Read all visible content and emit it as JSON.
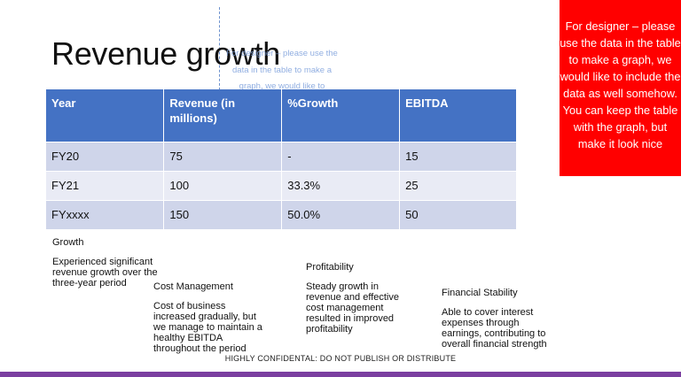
{
  "slide": {
    "title": "Revenue growth",
    "table": {
      "headers": [
        "Year",
        "Revenue (in millions)",
        "%Growth",
        "EBITDA"
      ],
      "rows": [
        [
          "FY20",
          "75",
          "-",
          "15"
        ],
        [
          "FY21",
          "100",
          "33.3%",
          "25"
        ],
        [
          "FYxxxx",
          "150",
          "50.0%",
          "50"
        ]
      ]
    },
    "designer_note": "For designer – please use the data in the table to make a graph, we would like to include the data as well somehow. You can keep the table with the graph, but make it look nice",
    "ghost_text": "For designer – please use the data in the table to make a graph, we would like to include the data as well somehow. You can keep the table with the graph, but make it look nice",
    "blocks": [
      {
        "heading": "Growth",
        "body": "Experienced significant revenue growth over the three-year period"
      },
      {
        "heading": "Cost Management",
        "body": "Cost of business increased gradually, but we manage to maintain a healthy EBITDA throughout the period"
      },
      {
        "heading": "Profitability",
        "body": "Steady growth in revenue and effective cost management resulted in improved profitability"
      },
      {
        "heading": "Financial Stability",
        "body": "Able to cover interest expenses through earnings, contributing to overall financial strength"
      }
    ],
    "footer": "HIGHLY CONFIDENTAL: DO NOT PUBLISH OR DISTRIBUTE",
    "colors": {
      "table_header": "#4472c4",
      "row_odd": "#cfd5ea",
      "row_even": "#e9ebf5",
      "note_bg": "#ff0000",
      "bottom_bar": "#7b3fa0"
    }
  }
}
